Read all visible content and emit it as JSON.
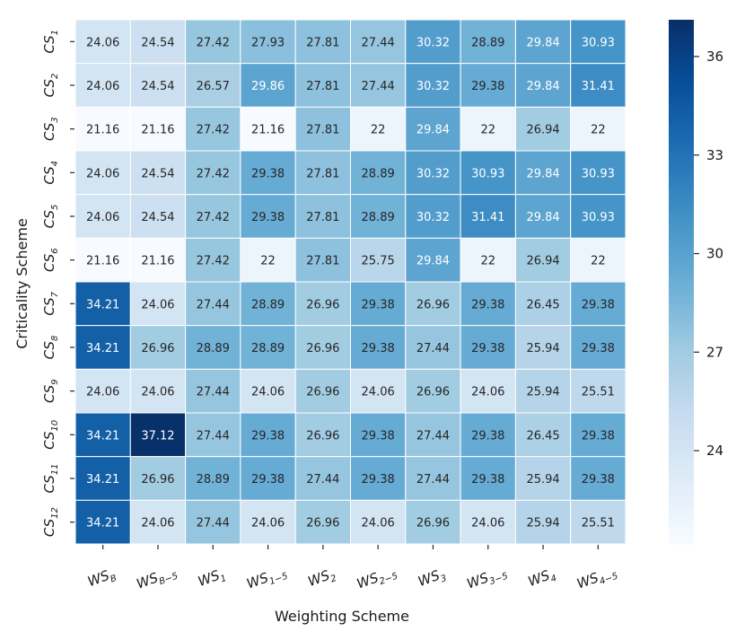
{
  "chart_data": {
    "type": "heatmap",
    "xlabel": "Weighting Scheme",
    "ylabel": "Criticality Scheme",
    "columns": [
      {
        "base": "WS",
        "sub": "B"
      },
      {
        "base": "WS",
        "sub": "B−5"
      },
      {
        "base": "WS",
        "sub": "1"
      },
      {
        "base": "WS",
        "sub": "1−5"
      },
      {
        "base": "WS",
        "sub": "2"
      },
      {
        "base": "WS",
        "sub": "2−5"
      },
      {
        "base": "WS",
        "sub": "3"
      },
      {
        "base": "WS",
        "sub": "3−5"
      },
      {
        "base": "WS",
        "sub": "4"
      },
      {
        "base": "WS",
        "sub": "4−5"
      }
    ],
    "rows": [
      {
        "base": "CS",
        "sub": "1"
      },
      {
        "base": "CS",
        "sub": "2"
      },
      {
        "base": "CS",
        "sub": "3"
      },
      {
        "base": "CS",
        "sub": "4"
      },
      {
        "base": "CS",
        "sub": "5"
      },
      {
        "base": "CS",
        "sub": "6"
      },
      {
        "base": "CS",
        "sub": "7"
      },
      {
        "base": "CS",
        "sub": "8"
      },
      {
        "base": "CS",
        "sub": "9"
      },
      {
        "base": "CS",
        "sub": "10"
      },
      {
        "base": "CS",
        "sub": "11"
      },
      {
        "base": "CS",
        "sub": "12"
      }
    ],
    "values": [
      [
        24.06,
        24.54,
        27.42,
        27.93,
        27.81,
        27.44,
        30.32,
        28.89,
        29.84,
        30.93
      ],
      [
        24.06,
        24.54,
        26.57,
        29.86,
        27.81,
        27.44,
        30.32,
        29.38,
        29.84,
        31.41
      ],
      [
        21.16,
        21.16,
        27.42,
        21.16,
        27.81,
        22,
        29.84,
        22,
        26.94,
        22
      ],
      [
        24.06,
        24.54,
        27.42,
        29.38,
        27.81,
        28.89,
        30.32,
        30.93,
        29.84,
        30.93
      ],
      [
        24.06,
        24.54,
        27.42,
        29.38,
        27.81,
        28.89,
        30.32,
        31.41,
        29.84,
        30.93
      ],
      [
        21.16,
        21.16,
        27.42,
        22,
        27.81,
        25.75,
        29.84,
        22,
        26.94,
        22
      ],
      [
        34.21,
        24.06,
        27.44,
        28.89,
        26.96,
        29.38,
        26.96,
        29.38,
        26.45,
        29.38
      ],
      [
        34.21,
        26.96,
        28.89,
        28.89,
        26.96,
        29.38,
        27.44,
        29.38,
        25.94,
        29.38
      ],
      [
        24.06,
        24.06,
        27.44,
        24.06,
        26.96,
        24.06,
        26.96,
        24.06,
        25.94,
        25.51
      ],
      [
        34.21,
        37.12,
        27.44,
        29.38,
        26.96,
        29.38,
        27.44,
        29.38,
        26.45,
        29.38
      ],
      [
        34.21,
        26.96,
        28.89,
        29.38,
        27.44,
        29.38,
        27.44,
        29.38,
        25.94,
        29.38
      ],
      [
        34.21,
        24.06,
        27.44,
        24.06,
        26.96,
        24.06,
        26.96,
        24.06,
        25.94,
        25.51
      ]
    ],
    "colormap": "Blues",
    "colorbar": {
      "range": [
        21.16,
        37.12
      ],
      "ticks": [
        24,
        27,
        30,
        33,
        36
      ]
    },
    "grid": true
  }
}
